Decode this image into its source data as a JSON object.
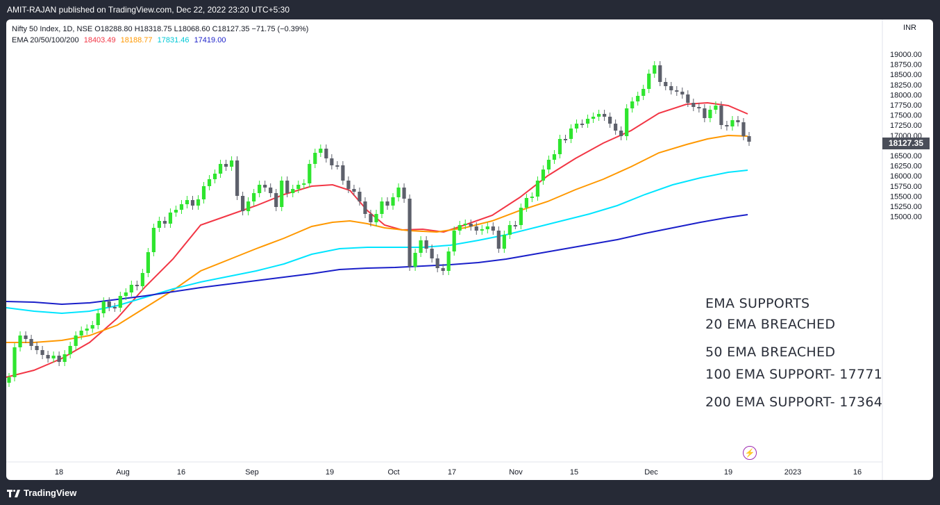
{
  "header": {
    "publisher": "AMIT-RAJAN published on TradingView.com, Dec 22, 2022 23:20 UTC+5:30"
  },
  "legend": {
    "symbol_line": "Nifty 50 Index, 1D, NSE  O18288.80  H18318.75  L18068.60  C18127.35  −71.75 (−0.39%)",
    "ema_label": "EMA 20/50/100/200",
    "ema_values": [
      "18403.49",
      "18188.77",
      "17831.46",
      "17419.00"
    ],
    "ema_colors": [
      "#f23645",
      "#ff9800",
      "#00e5ff",
      "#1a1fc9"
    ]
  },
  "currency": "INR",
  "price_axis": {
    "ticks": [
      "19000.00",
      "18750.00",
      "18500.00",
      "18250.00",
      "18000.00",
      "17750.00",
      "17500.00",
      "17250.00",
      "17000.00",
      "16750.00",
      "16500.00",
      "16250.00",
      "16000.00",
      "15750.00",
      "15500.00",
      "15250.00",
      "15000.00"
    ],
    "last_price": "18127.35"
  },
  "time_axis": {
    "ticks": [
      "18",
      "Aug",
      "16",
      "Sep",
      "19",
      "Oct",
      "17",
      "Nov",
      "15",
      "Dec",
      "19",
      "2023",
      "16"
    ]
  },
  "annotation": {
    "lines": [
      "EMA SUPPORTS",
      "20 EMA BREACHED",
      "50 EMA BREACHED",
      "100 EMA SUPPORT- 17771",
      "200 EMA SUPPORT- 17364"
    ]
  },
  "footer": {
    "brand": "TradingView"
  },
  "colors": {
    "up": "#2ee52e",
    "down": "#5d606b",
    "background": "#262a36"
  }
}
